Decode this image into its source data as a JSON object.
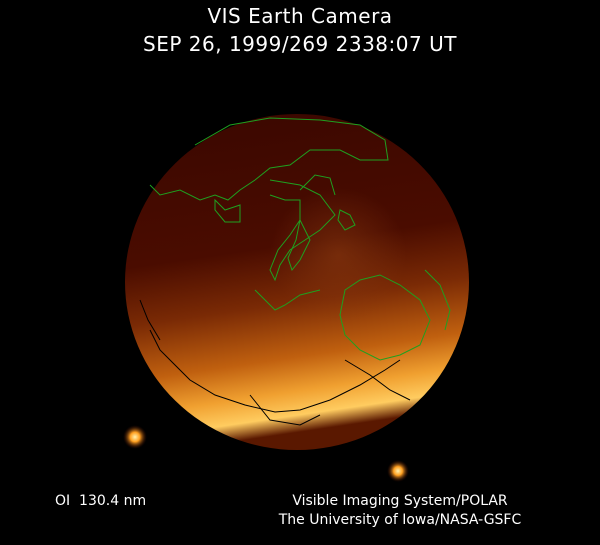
{
  "header": {
    "title": "VIS Earth Camera",
    "timestamp": "SEP 26, 1999/269 2338:07 UT"
  },
  "footer": {
    "wavelength": "OI  130.4 nm",
    "credit_line1": "Visible Imaging System/POLAR",
    "credit_line2": "The University of Iowa/NASA-GSFC"
  },
  "colors": {
    "background": "#000000",
    "globe_dark": "#3a0700",
    "aurora_bright": "#ffb030",
    "coastline_day": "#1fa01f",
    "coastline_night": "#000000"
  }
}
